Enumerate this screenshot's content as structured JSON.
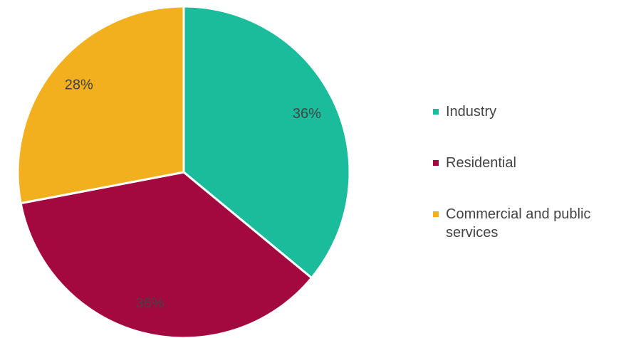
{
  "chart_data": {
    "type": "pie",
    "categories": [
      "Industry",
      "Residential",
      "Commercial and public services"
    ],
    "values": [
      36,
      36,
      28
    ],
    "value_labels": [
      "36%",
      "36%",
      "28%"
    ],
    "colors": [
      "#1abc9c",
      "#a3093e",
      "#f2b01e"
    ],
    "legend": "right"
  }
}
